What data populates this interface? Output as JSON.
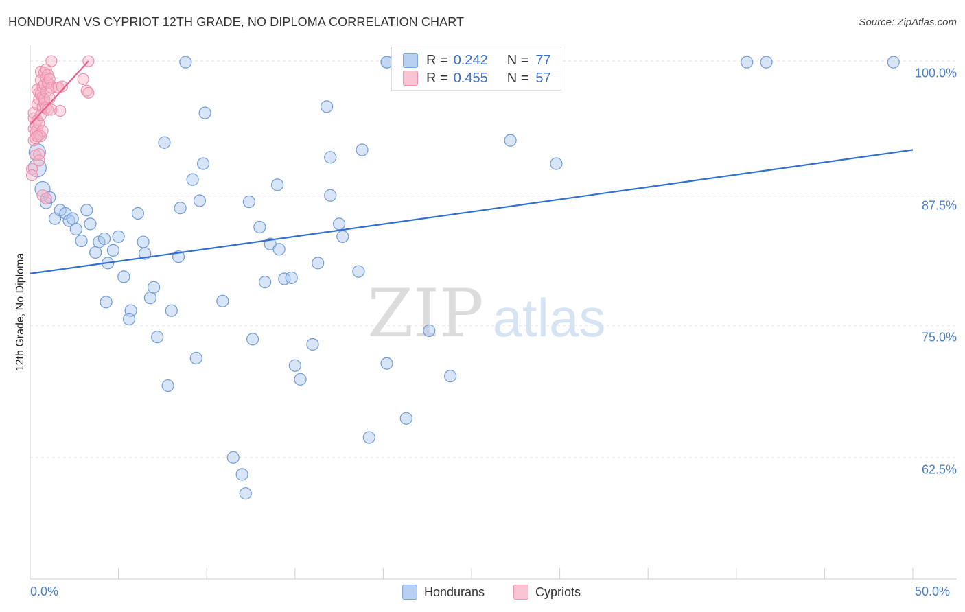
{
  "title": "HONDURAN VS CYPRIOT 12TH GRADE, NO DIPLOMA CORRELATION CHART",
  "source": "Source: ZipAtlas.com",
  "chart_data": {
    "type": "scatter",
    "title": "HONDURAN VS CYPRIOT 12TH GRADE, NO DIPLOMA CORRELATION CHART",
    "xlabel": "",
    "ylabel": "12th Grade, No Diploma",
    "xlim": [
      0,
      50
    ],
    "ylim": [
      51,
      101.5
    ],
    "x_tick_labels": [
      "0.0%",
      "50.0%"
    ],
    "y_ticks": [
      62.5,
      75.0,
      87.5,
      100.0
    ],
    "y_tick_labels": [
      "62.5%",
      "75.0%",
      "87.5%",
      "100.0%"
    ],
    "grid": true,
    "legend_position": "top-center",
    "series": [
      {
        "name": "Hondurans",
        "color": "#a9c6ee",
        "line_color": "#2f6fd6",
        "r": "0.242",
        "n": "77",
        "trend": [
          [
            0,
            79.9
          ],
          [
            50,
            91.6
          ]
        ],
        "points": [
          [
            0.4,
            89.9
          ],
          [
            0.4,
            91.4
          ],
          [
            0.7,
            87.9
          ],
          [
            0.9,
            86.6
          ],
          [
            1.1,
            87.1
          ],
          [
            1.4,
            85.1
          ],
          [
            1.7,
            85.9
          ],
          [
            2.0,
            85.6
          ],
          [
            2.2,
            84.9
          ],
          [
            2.4,
            85.1
          ],
          [
            2.6,
            84.1
          ],
          [
            2.9,
            83.0
          ],
          [
            3.2,
            85.9
          ],
          [
            3.4,
            84.6
          ],
          [
            3.7,
            81.9
          ],
          [
            3.9,
            82.9
          ],
          [
            4.2,
            83.2
          ],
          [
            4.4,
            80.9
          ],
          [
            4.7,
            82.1
          ],
          [
            5.0,
            83.4
          ],
          [
            5.3,
            79.6
          ],
          [
            4.3,
            77.2
          ],
          [
            5.7,
            76.4
          ],
          [
            5.6,
            75.6
          ],
          [
            6.1,
            85.6
          ],
          [
            6.4,
            82.9
          ],
          [
            6.5,
            81.8
          ],
          [
            6.8,
            77.6
          ],
          [
            7.0,
            78.6
          ],
          [
            7.2,
            73.9
          ],
          [
            7.6,
            92.3
          ],
          [
            7.8,
            69.3
          ],
          [
            8.0,
            76.4
          ],
          [
            8.4,
            81.5
          ],
          [
            8.5,
            86.1
          ],
          [
            8.8,
            99.9
          ],
          [
            9.2,
            88.8
          ],
          [
            9.4,
            71.9
          ],
          [
            9.6,
            86.8
          ],
          [
            9.8,
            90.3
          ],
          [
            9.9,
            95.1
          ],
          [
            10.9,
            77.3
          ],
          [
            11.5,
            62.5
          ],
          [
            12.0,
            60.9
          ],
          [
            12.2,
            59.1
          ],
          [
            12.4,
            86.7
          ],
          [
            12.6,
            73.7
          ],
          [
            13.0,
            84.3
          ],
          [
            13.3,
            79.1
          ],
          [
            13.6,
            82.7
          ],
          [
            14.0,
            88.3
          ],
          [
            14.1,
            82.2
          ],
          [
            14.4,
            79.4
          ],
          [
            14.8,
            79.5
          ],
          [
            15.0,
            71.2
          ],
          [
            15.3,
            69.9
          ],
          [
            16.0,
            73.2
          ],
          [
            16.3,
            80.9
          ],
          [
            16.8,
            95.7
          ],
          [
            17.0,
            90.9
          ],
          [
            17.0,
            87.3
          ],
          [
            17.5,
            84.6
          ],
          [
            17.7,
            83.4
          ],
          [
            18.6,
            80.1
          ],
          [
            18.8,
            91.6
          ],
          [
            19.2,
            64.4
          ],
          [
            20.2,
            99.9
          ],
          [
            20.2,
            99.9
          ],
          [
            20.2,
            71.4
          ],
          [
            21.3,
            66.2
          ],
          [
            22.6,
            74.5
          ],
          [
            23.8,
            70.2
          ],
          [
            27.2,
            92.5
          ],
          [
            29.8,
            90.3
          ],
          [
            40.6,
            99.9
          ],
          [
            41.7,
            99.9
          ],
          [
            48.9,
            99.9
          ]
        ]
      },
      {
        "name": "Cypriots",
        "color": "#f6b6c8",
        "line_color": "#e8608a",
        "r": "0.455",
        "n": "57",
        "trend": [
          [
            0,
            94.0
          ],
          [
            3.3,
            100.0
          ]
        ],
        "points": [
          [
            0.1,
            89.8
          ],
          [
            0.1,
            89.2
          ],
          [
            0.2,
            92.5
          ],
          [
            0.2,
            93.6
          ],
          [
            0.2,
            94.6
          ],
          [
            0.2,
            95.1
          ],
          [
            0.3,
            93.2
          ],
          [
            0.3,
            91.1
          ],
          [
            0.3,
            94.0
          ],
          [
            0.3,
            92.7
          ],
          [
            0.4,
            93.5
          ],
          [
            0.4,
            95.9
          ],
          [
            0.4,
            97.3
          ],
          [
            0.4,
            94.4
          ],
          [
            0.5,
            93.0
          ],
          [
            0.5,
            91.2
          ],
          [
            0.5,
            96.4
          ],
          [
            0.5,
            94.1
          ],
          [
            0.5,
            97.0
          ],
          [
            0.5,
            90.6
          ],
          [
            0.6,
            92.9
          ],
          [
            0.6,
            96.9
          ],
          [
            0.6,
            99.0
          ],
          [
            0.6,
            98.2
          ],
          [
            0.6,
            94.9
          ],
          [
            0.7,
            93.4
          ],
          [
            0.7,
            95.7
          ],
          [
            0.7,
            97.6
          ],
          [
            0.7,
            87.3
          ],
          [
            0.7,
            96.6
          ],
          [
            0.8,
            98.9
          ],
          [
            0.8,
            97.8
          ],
          [
            0.8,
            96.0
          ],
          [
            0.8,
            96.4
          ],
          [
            0.9,
            98.4
          ],
          [
            0.9,
            99.2
          ],
          [
            0.9,
            95.6
          ],
          [
            0.9,
            97.1
          ],
          [
            0.9,
            87.0
          ],
          [
            1.0,
            98.0
          ],
          [
            1.0,
            95.4
          ],
          [
            1.0,
            97.9
          ],
          [
            1.0,
            98.7
          ],
          [
            1.1,
            98.3
          ],
          [
            1.1,
            96.5
          ],
          [
            1.2,
            97.5
          ],
          [
            1.2,
            100.0
          ],
          [
            1.2,
            95.4
          ],
          [
            1.5,
            97.5
          ],
          [
            1.6,
            97.5
          ],
          [
            1.7,
            95.3
          ],
          [
            1.8,
            97.6
          ],
          [
            3.0,
            98.3
          ],
          [
            3.2,
            97.2
          ],
          [
            3.3,
            97.0
          ],
          [
            3.3,
            100.0
          ],
          [
            0.4,
            92.9
          ]
        ]
      }
    ]
  }
}
